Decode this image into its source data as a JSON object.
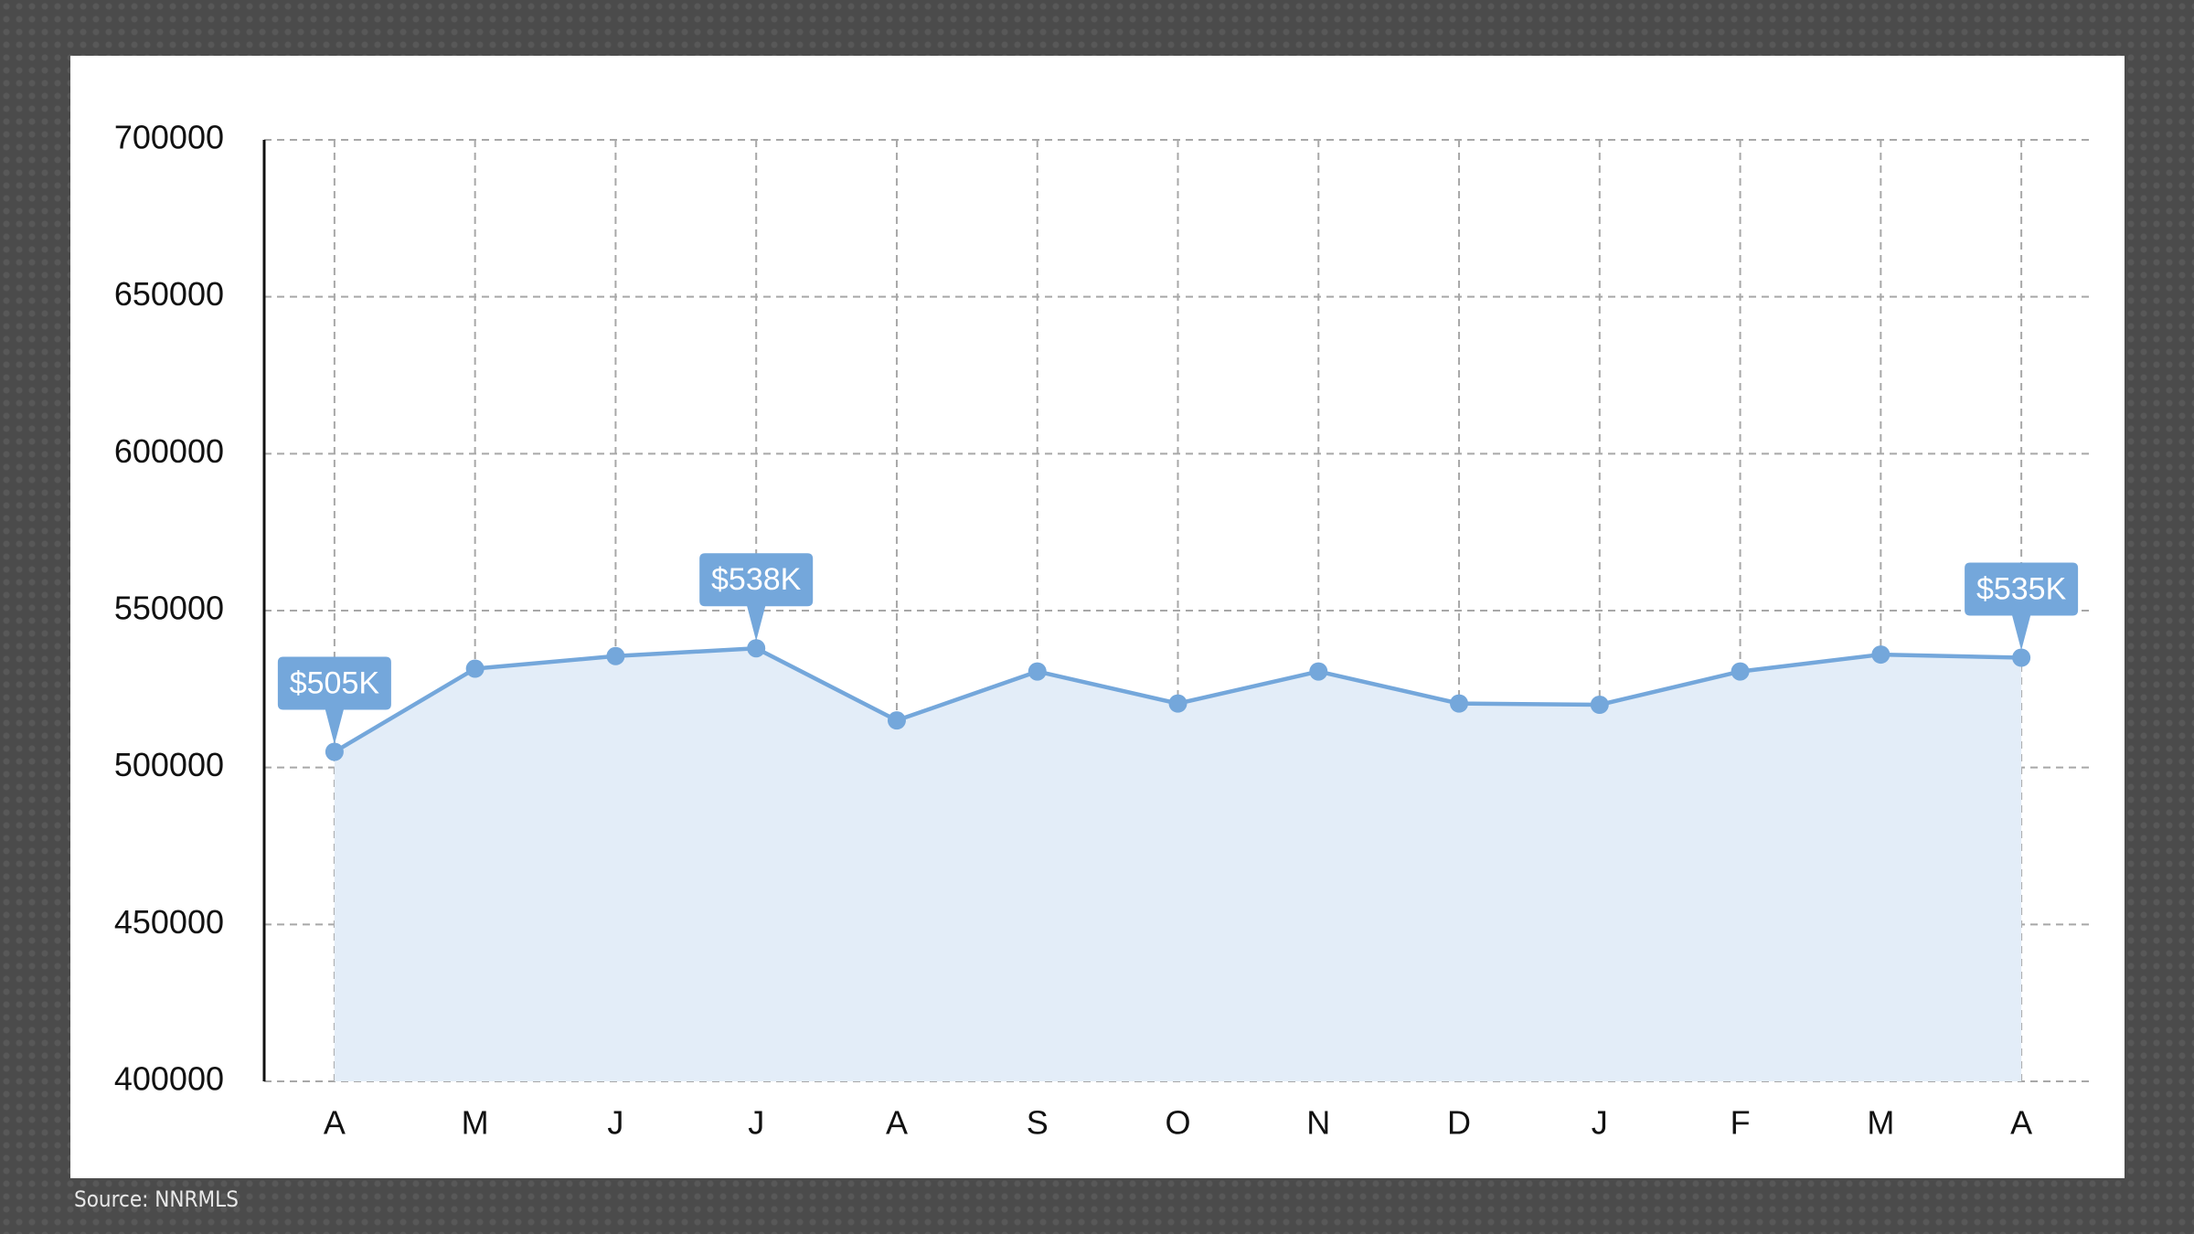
{
  "chart_data": {
    "type": "area",
    "categories": [
      "A",
      "M",
      "J",
      "J",
      "A",
      "S",
      "O",
      "N",
      "D",
      "J",
      "F",
      "M",
      "A"
    ],
    "values": [
      505000,
      531500,
      535500,
      538000,
      515000,
      530600,
      520400,
      530600,
      520400,
      520000,
      530600,
      536000,
      535000
    ],
    "value_labels": [
      "$505K",
      null,
      null,
      "$538K",
      null,
      null,
      null,
      null,
      null,
      null,
      null,
      null,
      "$535K"
    ],
    "color": "#74a7db",
    "fill": "#e3edf8",
    "ylim": [
      400000,
      700000
    ],
    "yticks": [
      400000,
      450000,
      500000,
      550000,
      600000,
      650000,
      700000
    ],
    "grid": true,
    "source": "Source: NNRMLS"
  }
}
